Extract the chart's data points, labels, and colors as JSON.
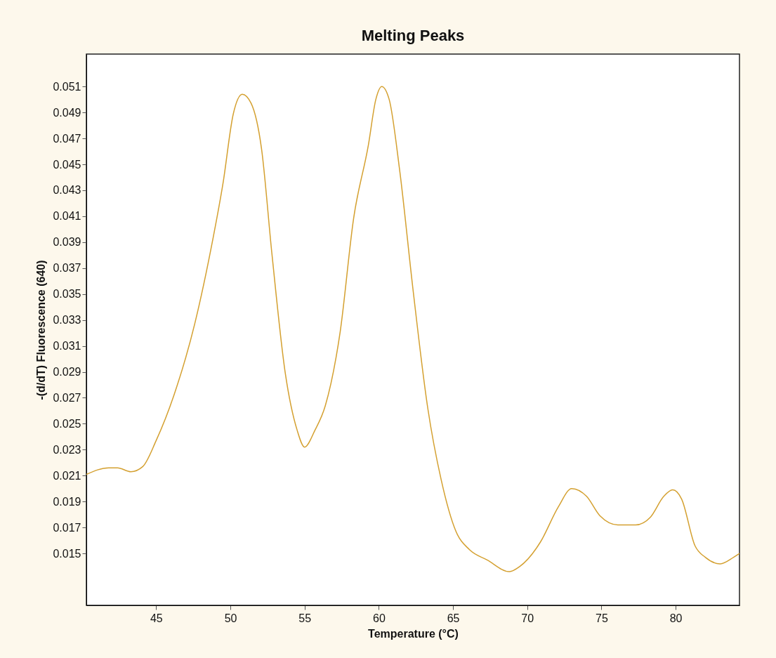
{
  "chart_data": {
    "type": "line",
    "title": "Melting Peaks",
    "xlabel": "Temperature (°C)",
    "ylabel": "-(d/dT) Fluorescence (640)",
    "x": [
      40.3,
      41.8,
      42.4,
      43.3,
      44.1,
      45,
      46.2,
      47.6,
      48.8,
      49.5,
      50.2,
      50.8,
      51.4,
      52.1,
      52.8,
      53.7,
      54.5,
      55,
      55.7,
      56.4,
      57.4,
      58.3,
      59.3,
      59.8,
      60.2,
      60.7,
      61.4,
      62.3,
      63.3,
      64.2,
      65.2,
      66.1,
      67.3,
      68.8,
      69.5,
      70.9,
      72.1,
      73,
      74,
      74.9,
      76.1,
      77.3,
      78.3,
      79.2,
      79.8,
      80.4,
      81.3,
      82,
      83,
      83.9,
      84.3
    ],
    "series": [
      {
        "color": "#d4a030",
        "values": [
          0.0211,
          0.0216,
          0.0216,
          0.0213,
          0.0217,
          0.0237,
          0.0272,
          0.0327,
          0.0391,
          0.0435,
          0.0489,
          0.0504,
          0.0497,
          0.0462,
          0.0381,
          0.0289,
          0.0245,
          0.0232,
          0.0245,
          0.0264,
          0.0321,
          0.0408,
          0.0465,
          0.05,
          0.051,
          0.05,
          0.0446,
          0.0354,
          0.0262,
          0.0207,
          0.0167,
          0.0153,
          0.0145,
          0.0136,
          0.014,
          0.0159,
          0.0186,
          0.02,
          0.0194,
          0.0179,
          0.0172,
          0.0172,
          0.0178,
          0.0194,
          0.0199,
          0.0192,
          0.0156,
          0.0147,
          0.0142,
          0.0147,
          0.015
        ]
      }
    ],
    "xlim": [
      40.3,
      84.3
    ],
    "xticks": [
      45,
      50,
      55,
      60,
      65,
      70,
      75,
      80
    ],
    "ylim": [
      0.011,
      0.0535
    ],
    "yticks": [
      0.015,
      0.017,
      0.019,
      0.021,
      0.023,
      0.025,
      0.027,
      0.029,
      0.031,
      0.033,
      0.035,
      0.037,
      0.039,
      0.041,
      0.043,
      0.045,
      0.047,
      0.049,
      0.051
    ],
    "grid": false,
    "marker": "none",
    "line_style": "solid"
  }
}
